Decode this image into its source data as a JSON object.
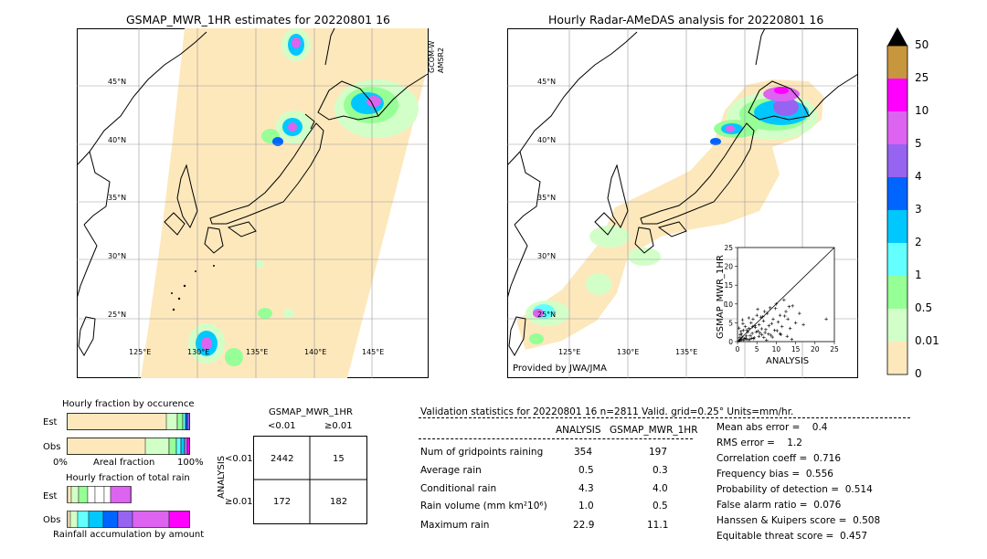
{
  "left_map": {
    "title": "GSMAP_MWR_1HR estimates for 20220801 16",
    "side_label_1": "GCOM-W",
    "side_label_2": "AMSR2",
    "lat_labels": [
      "45°N",
      "40°N",
      "35°N",
      "30°N",
      "25°N"
    ],
    "lon_labels": [
      "125°E",
      "130°E",
      "135°E",
      "140°E",
      "145°E"
    ]
  },
  "right_map": {
    "title": "Hourly Radar-AMeDAS analysis for 20220801 16",
    "lat_labels": [
      "45°N",
      "40°N",
      "35°N",
      "30°N",
      "25°N"
    ],
    "lon_labels": [
      "125°E",
      "130°E",
      "135°E"
    ],
    "provider": "Provided by JWA/JMA"
  },
  "colorbar": {
    "labels": [
      "50",
      "25",
      "10",
      "5",
      "4",
      "3",
      "2",
      "1",
      "0.5",
      "0.01",
      "0"
    ],
    "colors": [
      "#c8963c",
      "#ff00ff",
      "#dc64f0",
      "#9664f0",
      "#0064ff",
      "#00c8ff",
      "#64ffff",
      "#96ff96",
      "#d2ffc8",
      "#fde8bc"
    ],
    "over_color": "#000000"
  },
  "occurrence": {
    "title": "Hourly fraction by occurence",
    "row_est": "Est",
    "row_obs": "Obs",
    "axis_left": "0%",
    "axis_mid": "Areal fraction",
    "axis_right": "100%"
  },
  "total_rain": {
    "title": "Hourly fraction of total rain",
    "row_est": "Est",
    "row_obs": "Obs",
    "axis_label": "Rainfall accumulation by amount"
  },
  "contingency": {
    "title": "GSMAP_MWR_1HR",
    "col_lt": "<0.01",
    "col_ge": "≥0.01",
    "row_axis": "ANALYSIS",
    "row_lt": "<0.01",
    "row_ge": "≥0.01",
    "cells": [
      "2442",
      "15",
      "172",
      "182"
    ]
  },
  "validation": {
    "header": "Validation statistics for 20220801 16  n=2811 Valid. grid=0.25° Units=mm/hr.",
    "col_analysis": "ANALYSIS",
    "col_est": "GSMAP_MWR_1HR",
    "rows": [
      {
        "label": "Num of gridpoints raining",
        "analysis": "354",
        "est": "197"
      },
      {
        "label": "Average rain",
        "analysis": "0.5",
        "est": "0.3"
      },
      {
        "label": "Conditional rain",
        "analysis": "4.3",
        "est": "4.0"
      },
      {
        "label": "Rain volume (mm km²10⁶)",
        "analysis": "1.0",
        "est": "0.5"
      },
      {
        "label": "Maximum rain",
        "analysis": "22.9",
        "est": "11.1"
      }
    ],
    "scores": [
      "Mean abs error =    0.4",
      "RMS error =    1.2",
      "Correlation coeff =  0.716",
      "Frequency bias =  0.556",
      "Probability of detection =  0.514",
      "False alarm ratio =  0.076",
      "Hanssen & Kuipers score =  0.508",
      "Equitable threat score =  0.457"
    ]
  },
  "chart_data": {
    "type": "scatter",
    "xlabel": "ANALYSIS",
    "ylabel": "GSMAP_MWR_1HR",
    "xlim": [
      0,
      25
    ],
    "ylim": [
      0,
      25
    ],
    "xticks": [
      "0",
      "5",
      "10",
      "15",
      "20",
      "25"
    ],
    "yticks": [
      "0",
      "5",
      "10",
      "15",
      "20",
      "25"
    ],
    "marker": "+",
    "x": [
      0.3,
      0.5,
      0.8,
      1.0,
      1.2,
      1.5,
      1.8,
      2.0,
      2.3,
      2.6,
      3.0,
      3.2,
      3.5,
      3.8,
      4.0,
      4.3,
      4.6,
      5.0,
      5.3,
      5.6,
      6.0,
      6.3,
      6.7,
      7.0,
      7.3,
      7.7,
      8.0,
      8.4,
      8.8,
      9.2,
      9.6,
      10.0,
      10.5,
      11.0,
      11.5,
      12.0,
      12.5,
      13.0,
      13.6,
      14.2,
      15.0,
      16.0,
      17.0,
      22.9,
      0.6,
      1.1,
      1.6,
      2.1,
      2.8,
      3.3,
      4.1,
      4.8,
      5.5,
      6.2,
      7.1,
      8.1,
      9.0,
      10.2,
      11.2,
      12.2,
      13.3,
      0.4,
      0.9,
      1.4,
      2.4,
      3.6,
      4.5,
      5.8,
      6.8,
      0.7,
      1.3,
      2.2,
      2.9,
      3.9,
      5.2,
      6.5,
      7.5,
      8.6,
      9.8,
      11.0,
      12.8,
      14.0
    ],
    "y": [
      0.2,
      1.0,
      0.5,
      2.0,
      1.2,
      3.0,
      0.8,
      4.0,
      1.5,
      2.5,
      3.5,
      0.6,
      5.0,
      2.2,
      6.0,
      1.0,
      3.8,
      7.0,
      2.8,
      4.5,
      6.5,
      1.8,
      5.5,
      8.0,
      3.2,
      7.5,
      2.0,
      9.0,
      4.8,
      6.0,
      3.0,
      10.0,
      5.2,
      7.0,
      4.0,
      11.1,
      8.0,
      6.0,
      3.5,
      9.5,
      5.0,
      7.5,
      4.5,
      6.0,
      0.3,
      0.6,
      0.4,
      0.9,
      0.5,
      1.6,
      0.8,
      2.6,
      1.4,
      3.4,
      2.4,
      4.2,
      1.2,
      2.9,
      1.9,
      6.8,
      9.3,
      3.6,
      2.7,
      4.8,
      3.1,
      0.9,
      4.3,
      2.3,
      1.1,
      1.8,
      5.8,
      0.7,
      6.3,
      4.0,
      8.6,
      6.6,
      0.4,
      1.7,
      8.8,
      2.1,
      1.4,
      0.6
    ]
  }
}
